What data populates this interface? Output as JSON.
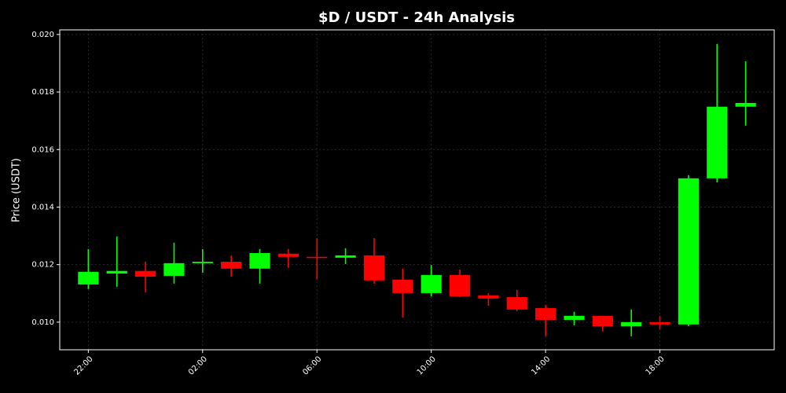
{
  "chart_data": {
    "type": "candlestick",
    "title": "$D / USDT - 24h Analysis",
    "y_label": "Price (USDT)",
    "categories": [
      "22:00",
      null,
      null,
      null,
      "02:00",
      null,
      null,
      null,
      "06:00",
      null,
      null,
      null,
      "10:00",
      null,
      null,
      null,
      "14:00",
      null,
      null,
      null,
      "18:00",
      null,
      null,
      null
    ],
    "open": [
      0.01131,
      0.01169,
      0.01178,
      0.01161,
      0.01205,
      0.0121,
      0.01186,
      0.01238,
      0.01227,
      0.01224,
      0.01232,
      0.01148,
      0.01101,
      0.01164,
      0.01093,
      0.01087,
      0.01049,
      0.01008,
      0.01022,
      0.00986,
      0.01,
      0.00992,
      0.015,
      0.01749
    ],
    "high": [
      0.01254,
      0.01298,
      0.0121,
      0.01276,
      0.01254,
      0.01232,
      0.01254,
      0.01254,
      0.01292,
      0.01257,
      0.01292,
      0.01186,
      0.01199,
      0.01183,
      0.01101,
      0.01112,
      0.0106,
      0.01036,
      0.01022,
      0.01044,
      0.01022,
      0.01511,
      0.01967,
      0.01907
    ],
    "low": [
      0.01115,
      0.01123,
      0.01104,
      0.01134,
      0.01172,
      0.01158,
      0.01134,
      0.01189,
      0.01148,
      0.01202,
      0.01134,
      0.01016,
      0.0109,
      0.01087,
      0.01057,
      0.01038,
      0.00951,
      0.00989,
      0.00967,
      0.00951,
      0.00975,
      0.00986,
      0.01486,
      0.01683
    ],
    "close": [
      0.01175,
      0.01178,
      0.01158,
      0.01205,
      0.0121,
      0.01186,
      0.0124,
      0.01227,
      0.01224,
      0.01232,
      0.01145,
      0.01101,
      0.01164,
      0.0109,
      0.01082,
      0.01044,
      0.01008,
      0.01022,
      0.00986,
      0.01,
      0.00992,
      0.015,
      0.01749,
      0.01762
    ],
    "up_color": "#00ff00",
    "down_color": "#ff0000",
    "ylim": [
      0.00904,
      0.02016
    ],
    "yticks": [
      {
        "value": 0.01,
        "label": "0.010"
      },
      {
        "value": 0.012,
        "label": "0.012"
      },
      {
        "value": 0.014,
        "label": "0.014"
      },
      {
        "value": 0.016,
        "label": "0.016"
      },
      {
        "value": 0.018,
        "label": "0.018"
      },
      {
        "value": 0.02,
        "label": "0.020"
      }
    ],
    "grid": true
  }
}
